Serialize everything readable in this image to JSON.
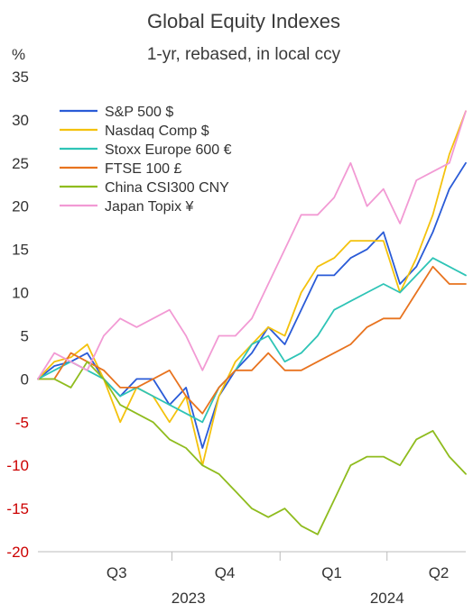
{
  "chart_data": {
    "type": "line",
    "title": "Global Equity Indexes",
    "subtitle": "1-yr, rebased, in local ccy",
    "yunit": "%",
    "ylim": [
      -20,
      35
    ],
    "yticks": [
      35,
      30,
      25,
      20,
      15,
      10,
      5,
      0,
      -5,
      -10,
      -15,
      -20
    ],
    "negative_tick_color": "#cc0000",
    "tick_color": "#333333",
    "grid": false,
    "legend_position": "top-left",
    "x_start": "2023-06-09",
    "x_end": "2024-06-07",
    "quarter_labels": [
      {
        "label": "Q3",
        "date": "2023-08-15"
      },
      {
        "label": "Q4",
        "date": "2023-11-15"
      },
      {
        "label": "Q1",
        "date": "2024-02-14"
      },
      {
        "label": "Q2",
        "date": "2024-05-15"
      }
    ],
    "quarter_boundaries": [
      "2023-10-01",
      "2024-01-01",
      "2024-04-01"
    ],
    "year_labels": [
      {
        "label": "2023",
        "date": "2023-10-15"
      },
      {
        "label": "2024",
        "date": "2024-04-01"
      }
    ],
    "x_dates": [
      "2023-06-09",
      "2023-06-23",
      "2023-07-07",
      "2023-07-21",
      "2023-08-04",
      "2023-08-18",
      "2023-09-01",
      "2023-09-15",
      "2023-09-29",
      "2023-10-13",
      "2023-10-27",
      "2023-11-10",
      "2023-11-24",
      "2023-12-08",
      "2023-12-22",
      "2024-01-05",
      "2024-01-19",
      "2024-02-02",
      "2024-02-16",
      "2024-03-01",
      "2024-03-15",
      "2024-03-29",
      "2024-04-12",
      "2024-04-26",
      "2024-05-10",
      "2024-05-24",
      "2024-06-07"
    ],
    "series": [
      {
        "name": "S&P 500 $",
        "color": "#2a5bd7",
        "values": [
          0,
          1.5,
          2,
          3,
          0,
          -2,
          0,
          0,
          -3,
          -1,
          -8,
          -2,
          1,
          3,
          6,
          4,
          8,
          12,
          12,
          14,
          15,
          17,
          11,
          13,
          17,
          22,
          25
        ]
      },
      {
        "name": "Nasdaq Comp $",
        "color": "#f4c20d",
        "values": [
          0,
          2,
          2.5,
          4,
          0,
          -5,
          -1,
          -2,
          -5,
          -2,
          -10,
          -2,
          2,
          4,
          6,
          5,
          10,
          13,
          14,
          16,
          16,
          16,
          10,
          14,
          19,
          26,
          31
        ]
      },
      {
        "name": "Stoxx Europe 600 €",
        "color": "#2ec4b6",
        "values": [
          0,
          1,
          2,
          1,
          0,
          -2,
          -1,
          -2,
          -3,
          -4,
          -5,
          -1,
          1,
          4,
          5,
          2,
          3,
          5,
          8,
          9,
          10,
          11,
          10,
          12,
          14,
          13,
          12
        ]
      },
      {
        "name": "FTSE 100 £",
        "color": "#e8731f",
        "values": [
          0,
          0,
          3,
          2,
          1,
          -1,
          -1,
          0,
          1,
          -2,
          -4,
          -1,
          1,
          1,
          3,
          1,
          1,
          2,
          3,
          4,
          6,
          7,
          7,
          10,
          13,
          11,
          11
        ]
      },
      {
        "name": "China CSI300 CNY",
        "color": "#8fbc1e",
        "values": [
          0,
          0,
          -1,
          2,
          0,
          -3,
          -4,
          -5,
          -7,
          -8,
          -10,
          -11,
          -13,
          -15,
          -16,
          -15,
          -17,
          -18,
          -14,
          -10,
          -9,
          -9,
          -10,
          -7,
          -6,
          -9,
          -11
        ]
      },
      {
        "name": "Japan Topix ¥",
        "color": "#f29ad4",
        "values": [
          0,
          3,
          2,
          1,
          5,
          7,
          6,
          7,
          8,
          5,
          1,
          5,
          5,
          7,
          11,
          15,
          19,
          19,
          21,
          25,
          20,
          22,
          18,
          23,
          24,
          25,
          31
        ]
      }
    ]
  }
}
